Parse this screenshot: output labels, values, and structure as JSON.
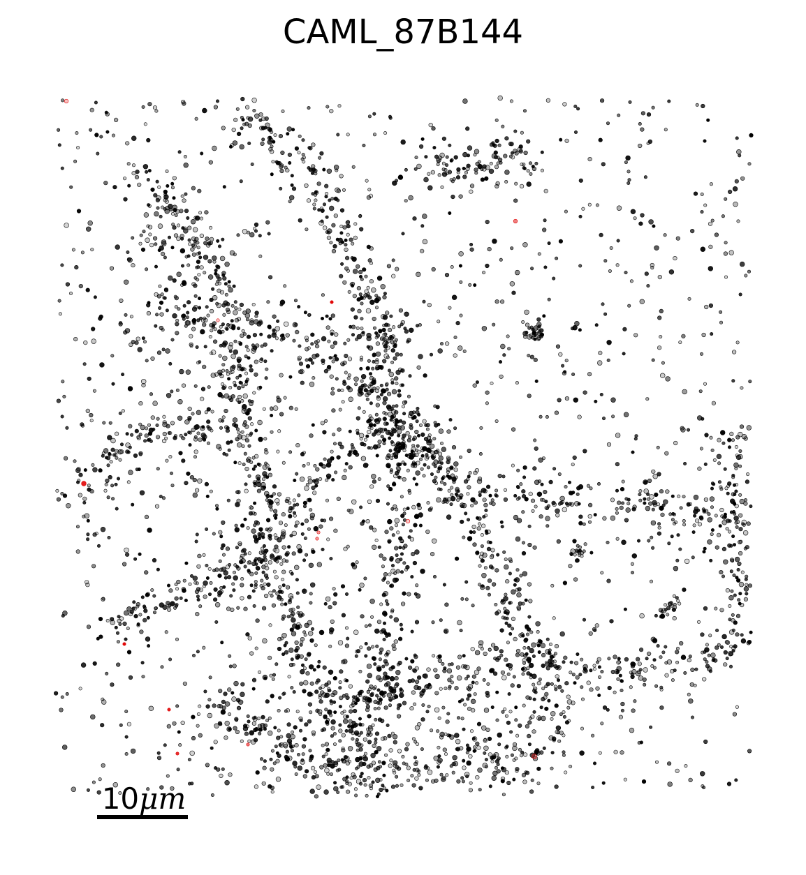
{
  "figure": {
    "title": "CAML_87B144",
    "scale_bar": {
      "number": "10",
      "unit": "μm"
    }
  },
  "colors": {
    "background": "#ffffff",
    "points": "#000000",
    "highlight_points": "#e00000"
  }
}
